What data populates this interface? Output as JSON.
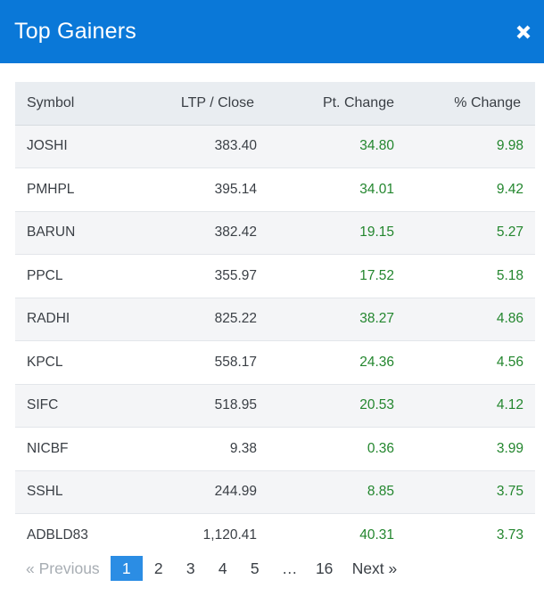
{
  "header": {
    "title": "Top Gainers",
    "close_icon": "close-icon"
  },
  "table": {
    "columns": [
      "Symbol",
      "LTP / Close",
      "Pt. Change",
      "% Change"
    ],
    "rows": [
      {
        "symbol": "JOSHI",
        "ltp": "383.40",
        "pt_change": "34.80",
        "pct_change": "9.98"
      },
      {
        "symbol": "PMHPL",
        "ltp": "395.14",
        "pt_change": "34.01",
        "pct_change": "9.42"
      },
      {
        "symbol": "BARUN",
        "ltp": "382.42",
        "pt_change": "19.15",
        "pct_change": "5.27"
      },
      {
        "symbol": "PPCL",
        "ltp": "355.97",
        "pt_change": "17.52",
        "pct_change": "5.18"
      },
      {
        "symbol": "RADHI",
        "ltp": "825.22",
        "pt_change": "38.27",
        "pct_change": "4.86"
      },
      {
        "symbol": "KPCL",
        "ltp": "558.17",
        "pt_change": "24.36",
        "pct_change": "4.56"
      },
      {
        "symbol": "SIFC",
        "ltp": "518.95",
        "pt_change": "20.53",
        "pct_change": "4.12"
      },
      {
        "symbol": "NICBF",
        "ltp": "9.38",
        "pt_change": "0.36",
        "pct_change": "3.99"
      },
      {
        "symbol": "SSHL",
        "ltp": "244.99",
        "pt_change": "8.85",
        "pct_change": "3.75"
      },
      {
        "symbol": "ADBLD83",
        "ltp": "1,120.41",
        "pt_change": "40.31",
        "pct_change": "3.73"
      }
    ]
  },
  "pagination": {
    "previous_label": "« Previous",
    "pages": [
      "1",
      "2",
      "3",
      "4",
      "5"
    ],
    "ellipsis": "…",
    "last_page": "16",
    "next_label": "Next »",
    "current_page": "1"
  },
  "colors": {
    "header_bg": "#0a78d8",
    "positive": "#23862e",
    "active_page": "#2b8de4"
  }
}
